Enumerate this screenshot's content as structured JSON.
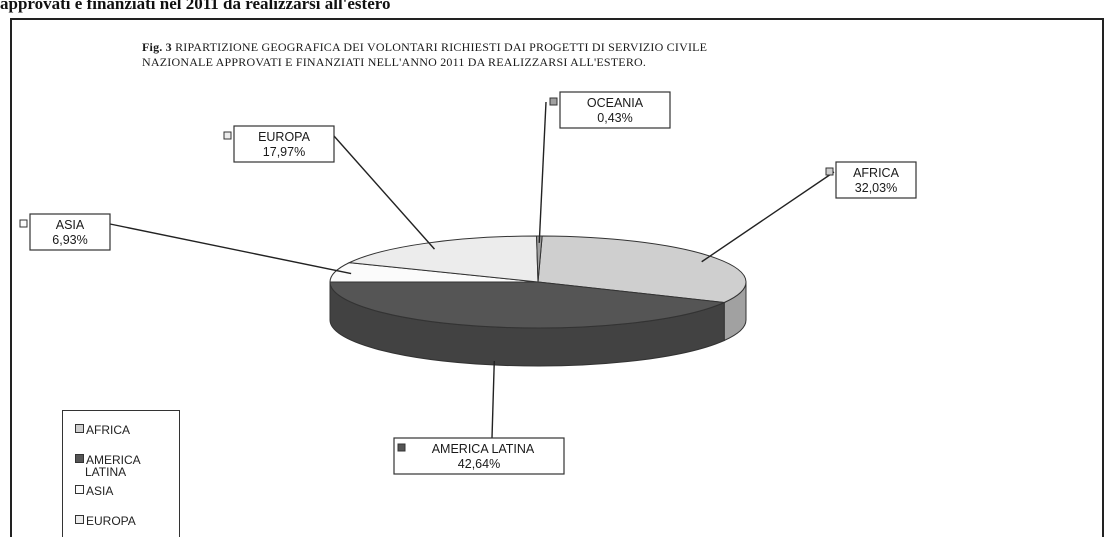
{
  "caption": "approvati e finanziati nel 2011 da realizzarsi all'estero",
  "chart_data": {
    "type": "pie",
    "title_prefix": "Fig. 3",
    "title_line1": "RIPARTIZIONE GEOGRAFICA DEI VOLONTARI RICHIESTI DAI PROGETTI DI SERVIZIO CIVILE",
    "title_line2": "NAZIONALE APPROVATI E FINANZIATI NELL'ANNO 2011 DA REALIZZARSI ALL'ESTERO.",
    "slices": [
      {
        "name": "AFRICA",
        "value": 32.03,
        "label_value": "32,03%",
        "color": "#cfcfcf"
      },
      {
        "name": "AMERICA LATINA",
        "value": 42.64,
        "label_value": "42,64%",
        "color": "#555555"
      },
      {
        "name": "ASIA",
        "value": 6.93,
        "label_value": "6,93%",
        "color": "#fbfbfb"
      },
      {
        "name": "EUROPA",
        "value": 17.97,
        "label_value": "17,97%",
        "color": "#ececec"
      },
      {
        "name": "OCEANIA",
        "value": 0.43,
        "label_value": "0,43%",
        "color": "#a0a0a0"
      }
    ],
    "legend": {
      "placement": "bottom-left",
      "items": [
        "AFRICA",
        "AMERICA LATINA",
        "ASIA",
        "EUROPA"
      ]
    }
  }
}
